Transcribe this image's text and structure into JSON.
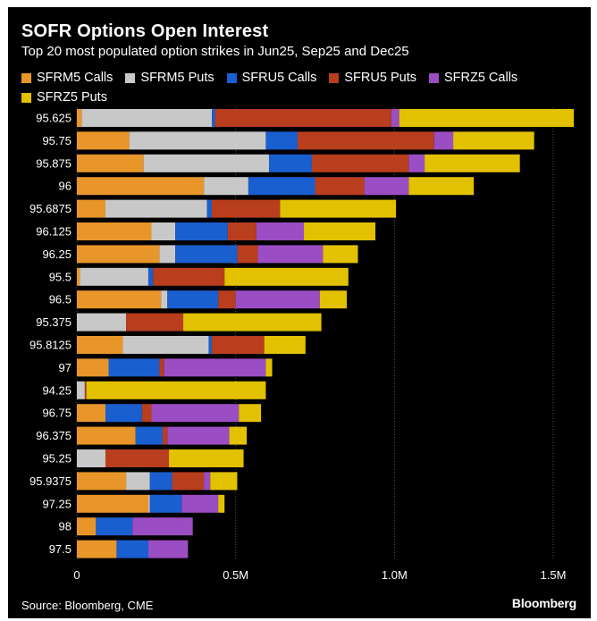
{
  "chart_data": {
    "type": "bar",
    "orientation": "horizontal",
    "stacked": true,
    "title": "SOFR Options Open Interest",
    "subtitle": "Top 20 most populated option strikes in Jun25, Sep25 and Dec25",
    "xlim": [
      0,
      1500000
    ],
    "xticks": [
      {
        "value": 0,
        "label": "0"
      },
      {
        "value": 500000,
        "label": "0.5M"
      },
      {
        "value": 1000000,
        "label": "1.0M"
      },
      {
        "value": 1500000,
        "label": "1.5M"
      }
    ],
    "grid": true,
    "legend_position": "top",
    "categories": [
      "95.625",
      "95.75",
      "95.875",
      "96",
      "95.6875",
      "96.125",
      "96.25",
      "95.5",
      "96.5",
      "95.375",
      "95.8125",
      "97",
      "94.25",
      "96.75",
      "96.375",
      "95.25",
      "95.9375",
      "97.25",
      "98",
      "97.5"
    ],
    "series": [
      {
        "name": "SFRM5 Calls",
        "color": "#e8962a",
        "values": [
          15000,
          165000,
          210000,
          400000,
          90000,
          235000,
          260000,
          10000,
          265000,
          0,
          145000,
          100000,
          0,
          90000,
          185000,
          0,
          155000,
          225000,
          60000,
          125000
        ]
      },
      {
        "name": "SFRM5 Puts",
        "color": "#c8c8c8",
        "values": [
          410000,
          430000,
          395000,
          140000,
          320000,
          75000,
          50000,
          215000,
          20000,
          155000,
          270000,
          0,
          25000,
          0,
          0,
          90000,
          75000,
          5000,
          0,
          0
        ]
      },
      {
        "name": "SFRU5 Calls",
        "color": "#1a5fd0",
        "values": [
          10000,
          100000,
          135000,
          210000,
          15000,
          165000,
          195000,
          15000,
          160000,
          0,
          10000,
          160000,
          0,
          115000,
          85000,
          0,
          70000,
          100000,
          115000,
          100000
        ]
      },
      {
        "name": "SFRU5 Puts",
        "color": "#b83e1e",
        "values": [
          555000,
          430000,
          305000,
          155000,
          215000,
          90000,
          65000,
          225000,
          55000,
          180000,
          165000,
          15000,
          5000,
          30000,
          15000,
          200000,
          100000,
          0,
          0,
          0
        ]
      },
      {
        "name": "SFRZ5 Calls",
        "color": "#9b4dc4",
        "values": [
          25000,
          60000,
          50000,
          140000,
          0,
          150000,
          205000,
          0,
          265000,
          0,
          0,
          320000,
          0,
          275000,
          195000,
          0,
          20000,
          115000,
          190000,
          125000
        ]
      },
      {
        "name": "SFRZ5 Puts",
        "color": "#e2c100",
        "values": [
          550000,
          255000,
          300000,
          205000,
          365000,
          225000,
          110000,
          390000,
          85000,
          435000,
          130000,
          20000,
          565000,
          70000,
          55000,
          235000,
          85000,
          20000,
          0,
          0
        ]
      }
    ]
  },
  "source": "Source: Bloomberg, CME",
  "brand": "Bloomberg"
}
